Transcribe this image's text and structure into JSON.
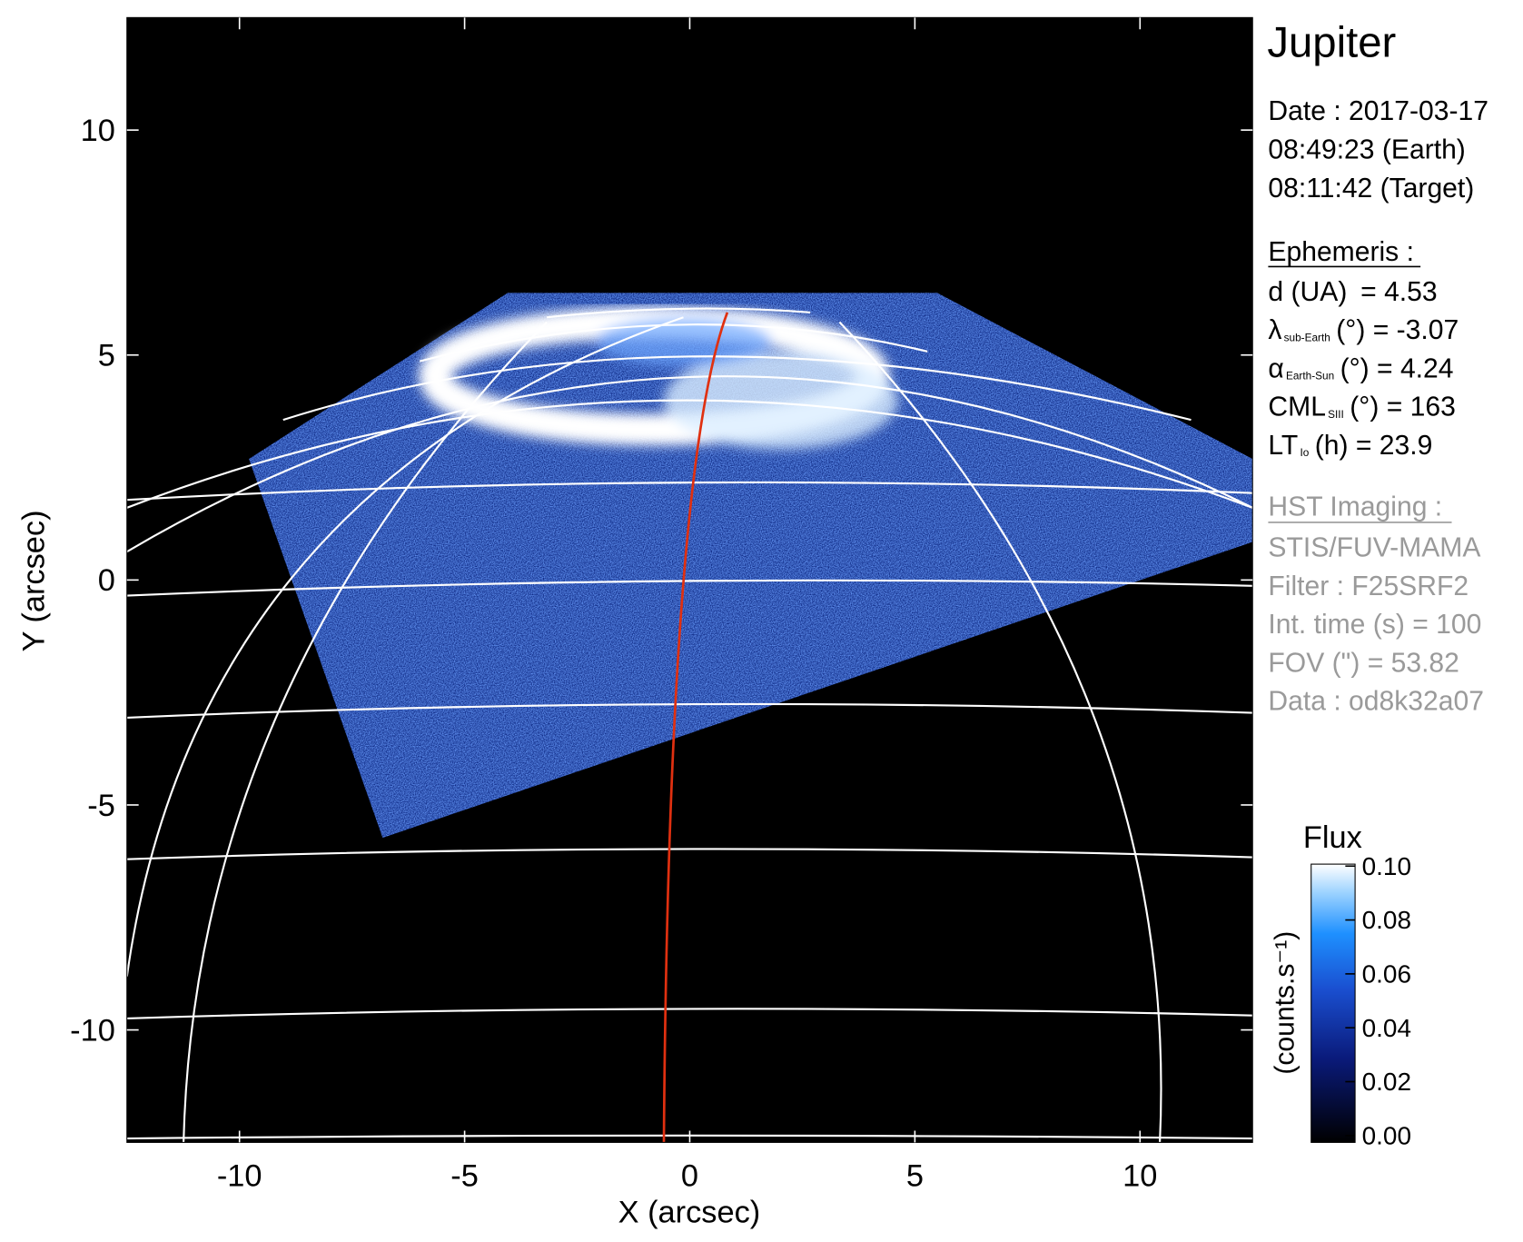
{
  "chart_data": {
    "type": "image",
    "xlabel": "X (arcsec)",
    "ylabel": "Y (arcsec)",
    "xlim": [
      -12.5,
      12.5
    ],
    "ylim": [
      -12.5,
      12.5
    ],
    "xticks": [
      -10,
      -5,
      0,
      5,
      10
    ],
    "yticks": [
      -10,
      -5,
      0,
      5,
      10
    ],
    "side_panel": {
      "planet": "Jupiter",
      "date": [
        "Date : 2017-03-17",
        "08:49:23 (Earth)",
        "08:11:42 (Target)"
      ],
      "ephemeris_title": "Ephemeris :",
      "ephemeris": [
        {
          "main": "d (UA)",
          "rest": "   = 4.53"
        },
        {
          "main": "λ",
          "sub": "sub-Earth",
          "rest": "(°) = -3.07"
        },
        {
          "main": "α",
          "sub": "Earth-Sun",
          "rest": "(°) = 4.24"
        },
        {
          "main": "CML",
          "sub": "SIII",
          "rest": "(°) = 163"
        },
        {
          "main": "LT",
          "sub": "Io",
          "rest": "(h) = 23.9"
        }
      ],
      "hst_title": "HST Imaging :",
      "hst": [
        "STIS/FUV-MAMA",
        "Filter : F25SRF2",
        "Int. time (s) = 100",
        "FOV (\") = 53.82",
        "Data : od8k32a07"
      ]
    },
    "colorbar": {
      "title": "Flux",
      "label": "(counts.s⁻¹)",
      "lim": [
        0,
        0.1
      ],
      "ticks": [
        {
          "value": 0,
          "label": "0.00"
        },
        {
          "value": 0.02,
          "label": "0.02"
        },
        {
          "value": 0.04,
          "label": "0.04"
        },
        {
          "value": 0.06,
          "label": "0.06"
        },
        {
          "value": 0.08,
          "label": "0.08"
        },
        {
          "value": 0.1,
          "label": "0.10"
        }
      ]
    }
  }
}
